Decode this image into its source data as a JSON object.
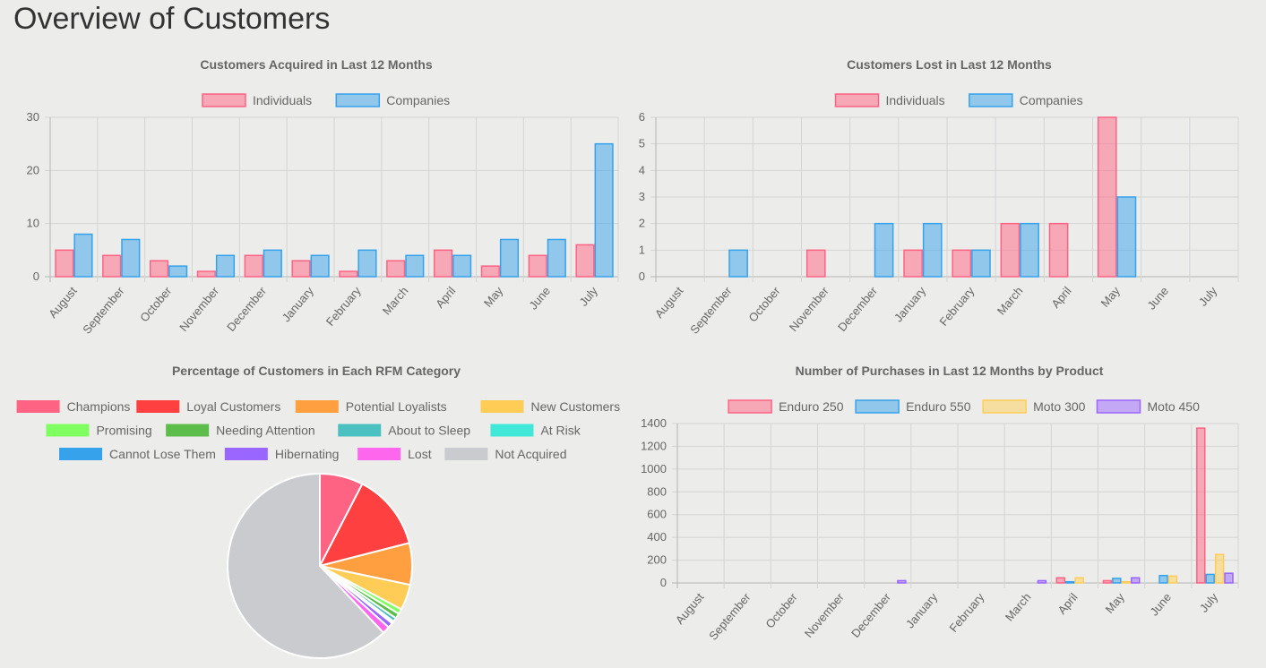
{
  "page": {
    "title": "Overview of Customers"
  },
  "chart_data": [
    {
      "type": "bar",
      "title": "Customers Acquired in Last 12 Months",
      "categories": [
        "August",
        "September",
        "October",
        "November",
        "December",
        "January",
        "February",
        "March",
        "April",
        "May",
        "June",
        "July"
      ],
      "series": [
        {
          "name": "Individuals",
          "values": [
            5,
            4,
            3,
            1,
            4,
            3,
            1,
            3,
            5,
            2,
            4,
            6
          ],
          "color": "#ff6384"
        },
        {
          "name": "Companies",
          "values": [
            8,
            7,
            2,
            4,
            5,
            4,
            5,
            4,
            4,
            7,
            7,
            25
          ],
          "color": "#36a2eb"
        }
      ],
      "ylim": [
        0,
        30
      ],
      "yticks": [
        0,
        10,
        20,
        30
      ],
      "grid": true,
      "legend": "top"
    },
    {
      "type": "bar",
      "title": "Customers Lost in Last 12 Months",
      "categories": [
        "August",
        "September",
        "October",
        "November",
        "December",
        "January",
        "February",
        "March",
        "April",
        "May",
        "June",
        "July"
      ],
      "series": [
        {
          "name": "Individuals",
          "values": [
            0,
            0,
            0,
            1,
            0,
            1,
            1,
            2,
            2,
            6,
            0,
            0
          ],
          "color": "#ff6384"
        },
        {
          "name": "Companies",
          "values": [
            0,
            1,
            0,
            0,
            2,
            2,
            1,
            2,
            0,
            3,
            0,
            0
          ],
          "color": "#36a2eb"
        }
      ],
      "ylim": [
        0,
        6
      ],
      "yticks": [
        0,
        1,
        2,
        3,
        4,
        5,
        6
      ],
      "grid": true,
      "legend": "top"
    },
    {
      "type": "pie",
      "title": "Percentage of Customers in Each RFM Category",
      "categories": [
        "Champions",
        "Loyal Customers",
        "Potential Loyalists",
        "New Customers",
        "Promising",
        "Needing Attention",
        "About to Sleep",
        "At Risk",
        "Cannot Lose Them",
        "Hibernating",
        "Lost",
        "Not Acquired"
      ],
      "values": [
        7.6,
        13.4,
        7.3,
        4.5,
        0.9,
        0.9,
        0.7,
        0.2,
        0.2,
        0.9,
        1.3,
        62.1
      ],
      "colors": [
        "#ff6384",
        "#ff4040",
        "#ff9f40",
        "#ffcd56",
        "#80ff60",
        "#5cbd4a",
        "#4bc0c0",
        "#40e8d8",
        "#36a2eb",
        "#9966ff",
        "#ff66ee",
        "#c9cbcf"
      ],
      "legend": "top"
    },
    {
      "type": "bar",
      "title": "Number of Purchases in Last 12 Months by Product",
      "categories": [
        "August",
        "September",
        "October",
        "November",
        "December",
        "January",
        "February",
        "March",
        "April",
        "May",
        "June",
        "July"
      ],
      "series": [
        {
          "name": "Enduro 250",
          "values": [
            0,
            0,
            0,
            0,
            0,
            0,
            0,
            0,
            45,
            20,
            0,
            1360
          ],
          "color": "#ff6384"
        },
        {
          "name": "Enduro 550",
          "values": [
            0,
            0,
            0,
            0,
            0,
            0,
            0,
            0,
            10,
            40,
            65,
            75
          ],
          "color": "#36a2eb"
        },
        {
          "name": "Moto 300",
          "values": [
            0,
            0,
            0,
            0,
            0,
            0,
            0,
            0,
            45,
            10,
            60,
            250
          ],
          "color": "#ffcd56"
        },
        {
          "name": "Moto 450",
          "values": [
            0,
            0,
            0,
            0,
            20,
            0,
            0,
            20,
            0,
            45,
            0,
            85
          ],
          "color": "#9966ff"
        }
      ],
      "ylim": [
        0,
        1400
      ],
      "yticks": [
        0,
        200,
        400,
        600,
        800,
        1000,
        1200,
        1400
      ],
      "grid": true,
      "legend": "top"
    }
  ]
}
